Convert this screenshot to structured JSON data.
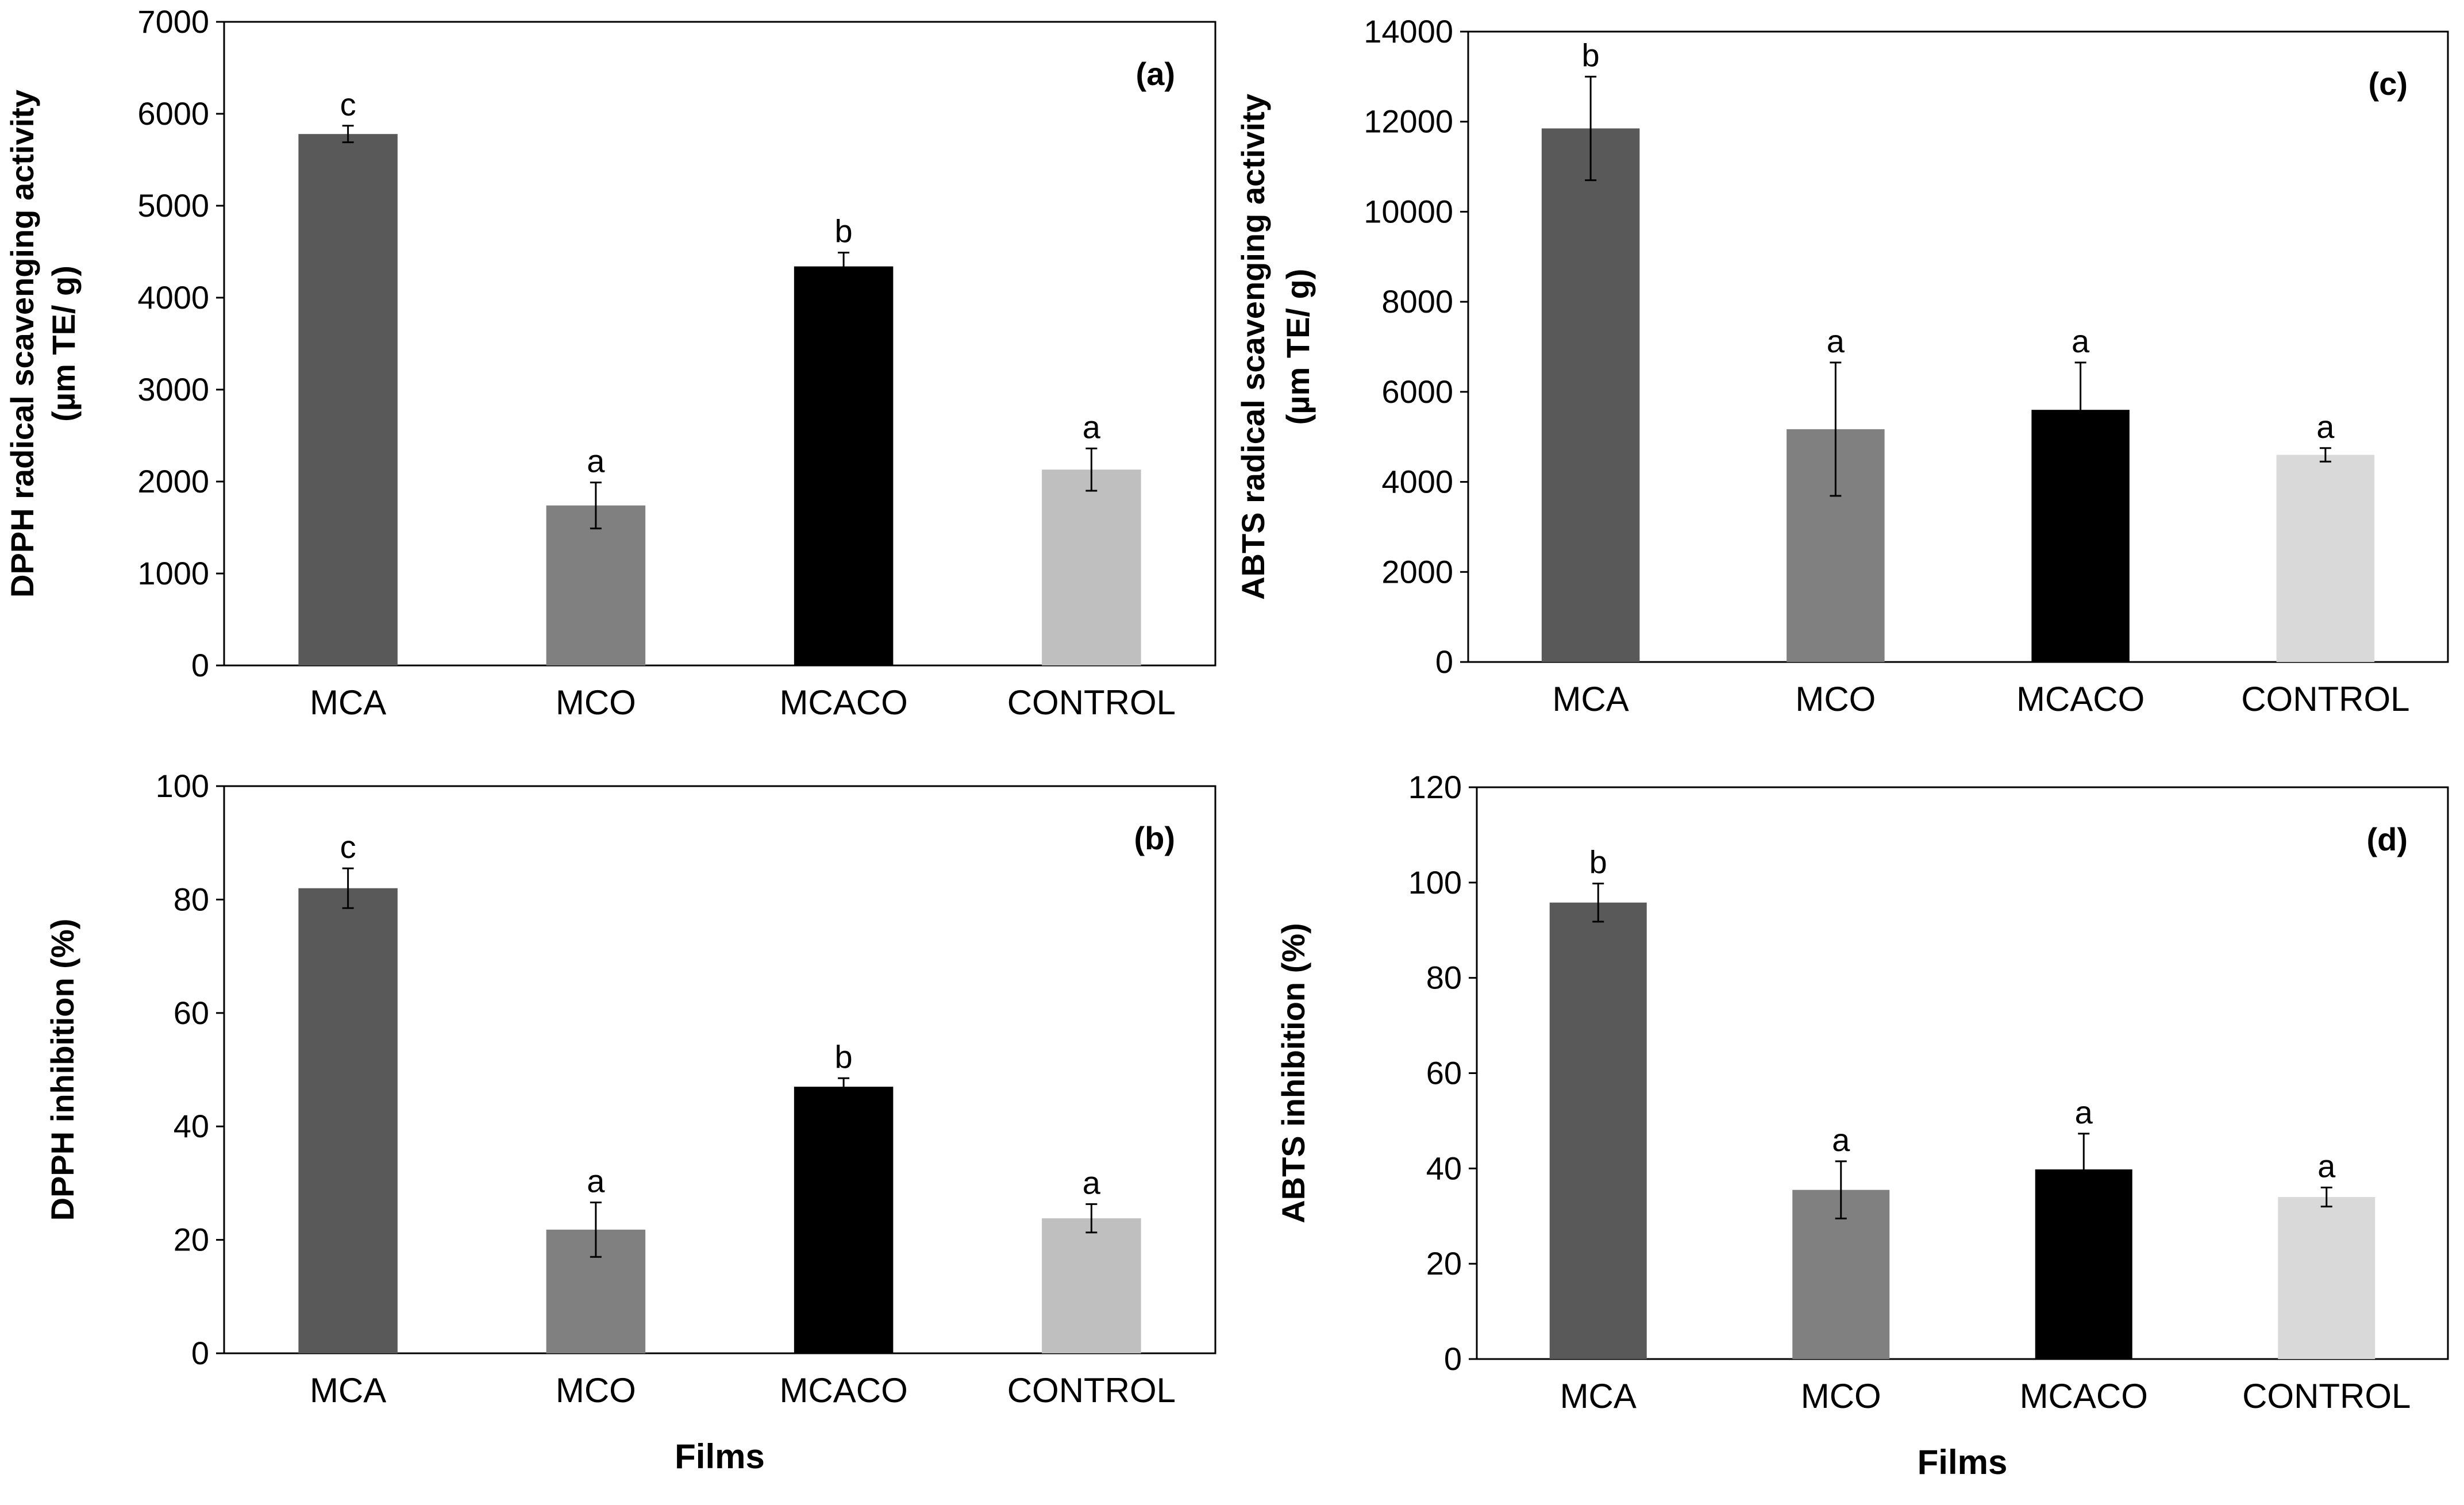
{
  "chart_data": [
    {
      "type": "bar",
      "panel_label": "(a)",
      "categories": [
        "MCA",
        "MCO",
        "MCACO",
        "CONTROL"
      ],
      "values": [
        5780,
        1740,
        4340,
        2130
      ],
      "errors": [
        90,
        250,
        150,
        230
      ],
      "significance": [
        "c",
        "a",
        "b",
        "a"
      ],
      "colors": [
        "#595959",
        "#808080",
        "#000000",
        "#bfbfbf"
      ],
      "ylabel_lines": [
        "DPPH radical scavenging activity",
        "(µm TE/ g)"
      ],
      "xlabel": "",
      "ylim": [
        0,
        7000
      ],
      "yticks": [
        0,
        1000,
        2000,
        3000,
        4000,
        5000,
        6000,
        7000
      ]
    },
    {
      "type": "bar",
      "panel_label": "(c)",
      "categories": [
        "MCA",
        "MCO",
        "MCACO",
        "CONTROL"
      ],
      "values": [
        11850,
        5170,
        5600,
        4600
      ],
      "errors": [
        1150,
        1480,
        1050,
        150
      ],
      "significance": [
        "b",
        "a",
        "a",
        "a"
      ],
      "colors": [
        "#595959",
        "#808080",
        "#000000",
        "#d9d9d9"
      ],
      "ylabel_lines": [
        "ABTS radical scavenging activity",
        "(µm TE/ g)"
      ],
      "xlabel": "",
      "ylim": [
        0,
        14000
      ],
      "yticks": [
        0,
        2000,
        4000,
        6000,
        8000,
        10000,
        12000,
        14000
      ]
    },
    {
      "type": "bar",
      "panel_label": "(b)",
      "categories": [
        "MCA",
        "MCO",
        "MCACO",
        "CONTROL"
      ],
      "values": [
        82,
        21.8,
        47,
        23.8
      ],
      "errors": [
        3.5,
        4.8,
        1.5,
        2.5
      ],
      "significance": [
        "c",
        "a",
        "b",
        "a"
      ],
      "colors": [
        "#595959",
        "#808080",
        "#000000",
        "#bfbfbf"
      ],
      "ylabel_lines": [
        "DPPH inhibition (%)"
      ],
      "xlabel": "Films",
      "ylim": [
        0,
        100
      ],
      "yticks": [
        0,
        20,
        40,
        60,
        80,
        100
      ]
    },
    {
      "type": "bar",
      "panel_label": "(d)",
      "categories": [
        "MCA",
        "MCO",
        "MCACO",
        "CONTROL"
      ],
      "values": [
        95.8,
        35.5,
        39.8,
        34
      ],
      "errors": [
        4,
        6,
        7.5,
        2
      ],
      "significance": [
        "b",
        "a",
        "a",
        "a"
      ],
      "colors": [
        "#595959",
        "#808080",
        "#000000",
        "#d9d9d9"
      ],
      "ylabel_lines": [
        "ABTS inhibition (%)"
      ],
      "xlabel": "Films",
      "ylim": [
        0,
        120
      ],
      "yticks": [
        0,
        20,
        40,
        60,
        80,
        100,
        120
      ]
    }
  ]
}
